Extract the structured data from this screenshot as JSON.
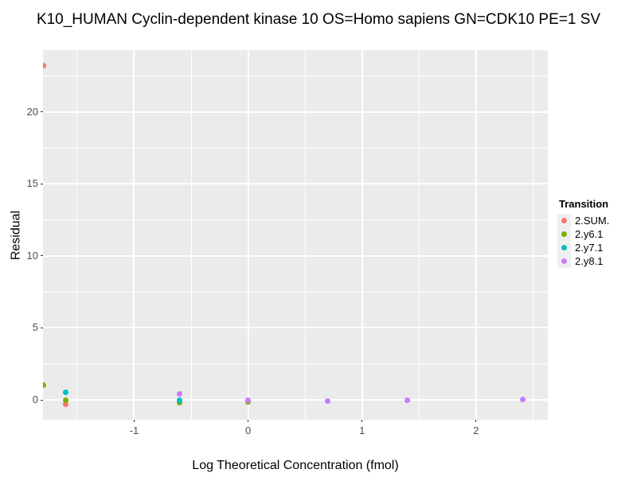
{
  "title": "K10_HUMAN Cyclin-dependent kinase 10 OS=Homo sapiens GN=CDK10 PE=1 SV",
  "legend": {
    "title": "Transition"
  },
  "chart_data": {
    "type": "scatter",
    "title": "K10_HUMAN Cyclin-dependent kinase 10 OS=Homo sapiens GN=CDK10 PE=1 SV",
    "xlabel": "Log Theoretical Concentration (fmol)",
    "ylabel": "Residual",
    "xlim": [
      -1.8,
      2.63
    ],
    "ylim": [
      -1.38,
      24.3
    ],
    "x_major_ticks": [
      -1,
      0,
      1,
      2
    ],
    "x_minor_ticks": [
      -1.5,
      -0.5,
      0.5,
      1.5,
      2.5
    ],
    "y_major_ticks": [
      0,
      5,
      10,
      15,
      20
    ],
    "y_minor_ticks": [
      2.5,
      7.5,
      12.5,
      17.5,
      22.5
    ],
    "grid": true,
    "panel_background": "#EBEBEB",
    "gridline_color": "#FFFFFF",
    "legend_position": "right",
    "legend_title": "Transition",
    "series": [
      {
        "name": "2.SUM.",
        "color": "#F8766D",
        "points": [
          {
            "x": -1.8,
            "y": 23.2
          },
          {
            "x": -1.6,
            "y": -0.33
          }
        ]
      },
      {
        "name": "2.y6.1",
        "color": "#7CAE00",
        "points": [
          {
            "x": -1.8,
            "y": 1.0
          },
          {
            "x": -1.6,
            "y": 0.0
          },
          {
            "x": -0.6,
            "y": -0.2
          },
          {
            "x": 0.0,
            "y": -0.15
          }
        ]
      },
      {
        "name": "2.y7.1",
        "color": "#00BFC4",
        "points": [
          {
            "x": -1.6,
            "y": 0.55
          },
          {
            "x": -0.6,
            "y": -0.05
          }
        ]
      },
      {
        "name": "2.y8.1",
        "color": "#C77CFF",
        "points": [
          {
            "x": -0.6,
            "y": 0.4
          },
          {
            "x": 0.0,
            "y": -0.05
          },
          {
            "x": 0.7,
            "y": -0.08
          },
          {
            "x": 1.4,
            "y": 0.0
          },
          {
            "x": 2.41,
            "y": 0.03
          }
        ]
      }
    ]
  }
}
